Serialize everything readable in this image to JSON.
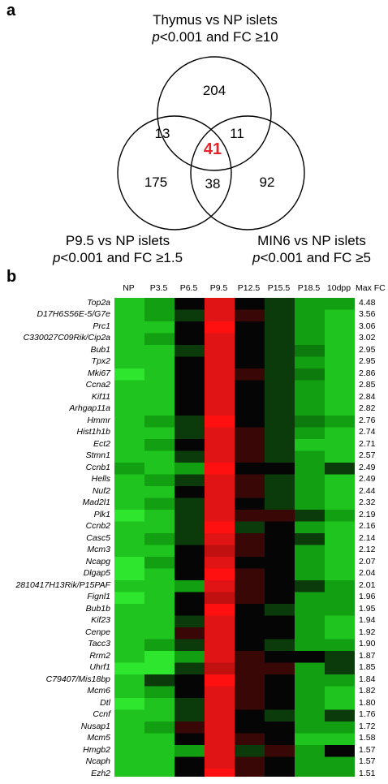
{
  "panel_a": {
    "letter": "a",
    "labels": {
      "thymus": {
        "line1": "Thymus vs NP islets",
        "p": "p",
        "rest": "<0.001 and FC ≥10"
      },
      "p95": {
        "line1": "P9.5 vs NP islets",
        "p": "p",
        "rest": "<0.001 and FC ≥1.5"
      },
      "min6": {
        "line1": "MIN6 vs NP islets",
        "p": "p",
        "rest": "<0.001 and FC ≥5"
      }
    },
    "counts": {
      "thymus_only": "204",
      "thymus_p95": "13",
      "thymus_min6": "11",
      "all_three": "41",
      "p95_only": "175",
      "p95_min6": "38",
      "min6_only": "92"
    },
    "highlight_color": "#e8232a"
  },
  "panel_b": {
    "letter": "b",
    "columns": [
      "NP",
      "P3.5",
      "P6.5",
      "P9.5",
      "P12.5",
      "P15.5",
      "P18.5",
      "10dpp"
    ],
    "maxfc_header": "Max FC",
    "genes": [
      {
        "name": "Top2a",
        "maxfc": "4.48",
        "c": [
          "G1",
          "G2",
          "K",
          "R2",
          "K",
          "D",
          "G2",
          "G2"
        ]
      },
      {
        "name": "D17H6S56E-5/G7e",
        "maxfc": "3.56",
        "c": [
          "G1",
          "G2",
          "D",
          "R2",
          "Dr",
          "D",
          "G2",
          "G1"
        ]
      },
      {
        "name": "Prc1",
        "maxfc": "3.06",
        "c": [
          "G1",
          "G1",
          "K",
          "R1",
          "K",
          "D",
          "G2",
          "G1"
        ]
      },
      {
        "name": "C330027C09Rik/Cip2a",
        "maxfc": "3.02",
        "c": [
          "G1",
          "G2",
          "K",
          "R2",
          "K",
          "D",
          "G2",
          "G1"
        ]
      },
      {
        "name": "Bub1",
        "maxfc": "2.95",
        "c": [
          "G1",
          "G1",
          "D",
          "R2",
          "K",
          "D",
          "G3",
          "G1"
        ]
      },
      {
        "name": "Tpx2",
        "maxfc": "2.95",
        "c": [
          "G1",
          "G1",
          "K",
          "R2",
          "K",
          "D",
          "G2",
          "G1"
        ]
      },
      {
        "name": "Mki67",
        "maxfc": "2.86",
        "c": [
          "G0",
          "G1",
          "K",
          "R2",
          "Dr",
          "D",
          "G3",
          "G1"
        ]
      },
      {
        "name": "Ccna2",
        "maxfc": "2.85",
        "c": [
          "G1",
          "G1",
          "K",
          "R2",
          "K",
          "D",
          "G2",
          "G1"
        ]
      },
      {
        "name": "Kif11",
        "maxfc": "2.84",
        "c": [
          "G1",
          "G1",
          "K",
          "R2",
          "K",
          "D",
          "G2",
          "G1"
        ]
      },
      {
        "name": "Arhgap11a",
        "maxfc": "2.82",
        "c": [
          "G1",
          "G1",
          "K",
          "R2",
          "K",
          "D",
          "G2",
          "G1"
        ]
      },
      {
        "name": "Hmmr",
        "maxfc": "2.76",
        "c": [
          "G1",
          "G2",
          "D",
          "R1",
          "K",
          "D",
          "G3",
          "G2"
        ]
      },
      {
        "name": "Hist1h1b",
        "maxfc": "2.74",
        "c": [
          "G1",
          "G1",
          "D",
          "R2",
          "Dr",
          "D",
          "G2",
          "G1"
        ]
      },
      {
        "name": "Ect2",
        "maxfc": "2.71",
        "c": [
          "G1",
          "G2",
          "K",
          "R2",
          "Dr",
          "D",
          "G1",
          "G1"
        ]
      },
      {
        "name": "Stmn1",
        "maxfc": "2.57",
        "c": [
          "G1",
          "G1",
          "D",
          "R2",
          "Dr",
          "D",
          "G2",
          "G1"
        ]
      },
      {
        "name": "Ccnb1",
        "maxfc": "2.49",
        "c": [
          "G2",
          "G1",
          "G2",
          "R1",
          "K",
          "K",
          "G2",
          "D"
        ]
      },
      {
        "name": "Hells",
        "maxfc": "2.49",
        "c": [
          "G1",
          "G2",
          "D",
          "R2",
          "Dr",
          "D",
          "G2",
          "G1"
        ]
      },
      {
        "name": "Nuf2",
        "maxfc": "2.44",
        "c": [
          "G1",
          "G1",
          "K",
          "R2",
          "Dr",
          "D",
          "G2",
          "G1"
        ]
      },
      {
        "name": "Mad2l1",
        "maxfc": "2.32",
        "c": [
          "G1",
          "G2",
          "D",
          "R2",
          "K",
          "D",
          "G2",
          "G1"
        ]
      },
      {
        "name": "Plk1",
        "maxfc": "2.19",
        "c": [
          "G0",
          "G1",
          "D",
          "R2",
          "Dr",
          "Dr",
          "D",
          "G2"
        ]
      },
      {
        "name": "Ccnb2",
        "maxfc": "2.16",
        "c": [
          "G1",
          "G1",
          "D",
          "R1",
          "D",
          "K",
          "G2",
          "G1"
        ]
      },
      {
        "name": "Casc5",
        "maxfc": "2.14",
        "c": [
          "G1",
          "G2",
          "D",
          "R2",
          "Dr",
          "K",
          "D",
          "G1"
        ]
      },
      {
        "name": "Mcm3",
        "maxfc": "2.12",
        "c": [
          "G1",
          "G1",
          "K",
          "R3",
          "Dr",
          "K",
          "G2",
          "G1"
        ]
      },
      {
        "name": "Ncapg",
        "maxfc": "2.07",
        "c": [
          "G0",
          "G2",
          "K",
          "R2",
          "K",
          "K",
          "G2",
          "G1"
        ]
      },
      {
        "name": "Dlgap5",
        "maxfc": "2.04",
        "c": [
          "G0",
          "G1",
          "K",
          "R1",
          "Dr",
          "K",
          "G2",
          "G1"
        ]
      },
      {
        "name": "2810417H13Rik/P15PAF",
        "maxfc": "2.01",
        "c": [
          "G1",
          "G1",
          "G2",
          "R2",
          "Dr",
          "K",
          "D",
          "G2"
        ]
      },
      {
        "name": "Fignl1",
        "maxfc": "1.96",
        "c": [
          "G0",
          "G1",
          "K",
          "R3",
          "Dr",
          "K",
          "G2",
          "G2"
        ]
      },
      {
        "name": "Bub1b",
        "maxfc": "1.95",
        "c": [
          "G1",
          "G1",
          "K",
          "R1",
          "K",
          "D",
          "G2",
          "G2"
        ]
      },
      {
        "name": "Kif23",
        "maxfc": "1.94",
        "c": [
          "G1",
          "G1",
          "D",
          "R2",
          "K",
          "K",
          "G2",
          "G1"
        ]
      },
      {
        "name": "Cenpe",
        "maxfc": "1.92",
        "c": [
          "G1",
          "G1",
          "Dr",
          "R2",
          "K",
          "K",
          "G2",
          "G1"
        ]
      },
      {
        "name": "Tacc3",
        "maxfc": "1.90",
        "c": [
          "G1",
          "G2",
          "D",
          "R2",
          "K",
          "D",
          "G2",
          "G2"
        ]
      },
      {
        "name": "Rrm2",
        "maxfc": "1.87",
        "c": [
          "G1",
          "G0",
          "G2",
          "R2",
          "Dr",
          "K",
          "K",
          "D"
        ]
      },
      {
        "name": "Uhrf1",
        "maxfc": "1.85",
        "c": [
          "G0",
          "G0",
          "D",
          "R3",
          "Dr",
          "Dr",
          "G2",
          "D"
        ]
      },
      {
        "name": "C79407/Mis18bp",
        "maxfc": "1.84",
        "c": [
          "G1",
          "D",
          "K",
          "R1",
          "Dr",
          "K",
          "G2",
          "G2"
        ]
      },
      {
        "name": "Mcm6",
        "maxfc": "1.82",
        "c": [
          "G1",
          "G2",
          "K",
          "R2",
          "Dr",
          "K",
          "G2",
          "G1"
        ]
      },
      {
        "name": "Dtl",
        "maxfc": "1.80",
        "c": [
          "G0",
          "G1",
          "D",
          "R2",
          "Dr",
          "K",
          "G2",
          "G1"
        ]
      },
      {
        "name": "Ccnf",
        "maxfc": "1.76",
        "c": [
          "G1",
          "G1",
          "D",
          "R2",
          "K",
          "D",
          "G2",
          "D"
        ]
      },
      {
        "name": "Nusap1",
        "maxfc": "1.72",
        "c": [
          "G1",
          "G2",
          "Dr",
          "R2",
          "K",
          "K",
          "G2",
          "G2"
        ]
      },
      {
        "name": "Mcm5",
        "maxfc": "1.58",
        "c": [
          "G1",
          "G1",
          "K",
          "R2",
          "Dr",
          "K",
          "G1",
          "G1"
        ]
      },
      {
        "name": "Hmgb2",
        "maxfc": "1.57",
        "c": [
          "G1",
          "G1",
          "G2",
          "R2",
          "D",
          "Dr",
          "G2",
          "K"
        ]
      },
      {
        "name": "Ncaph",
        "maxfc": "1.57",
        "c": [
          "G1",
          "G1",
          "K",
          "R2",
          "Dr",
          "K",
          "G2",
          "G2"
        ]
      },
      {
        "name": "Ezh2",
        "maxfc": "1.51",
        "c": [
          "G1",
          "G1",
          "K",
          "R1",
          "Dr",
          "K",
          "G2",
          "G2"
        ]
      }
    ],
    "palette": {
      "G0": "#2ee62e",
      "G1": "#1fc41f",
      "G2": "#12a012",
      "G3": "#0d7a0d",
      "D": "#0b3a0b",
      "K": "#050505",
      "Dr": "#3a0707",
      "R1": "#ff1010",
      "R2": "#e01414",
      "R3": "#c01010"
    }
  }
}
